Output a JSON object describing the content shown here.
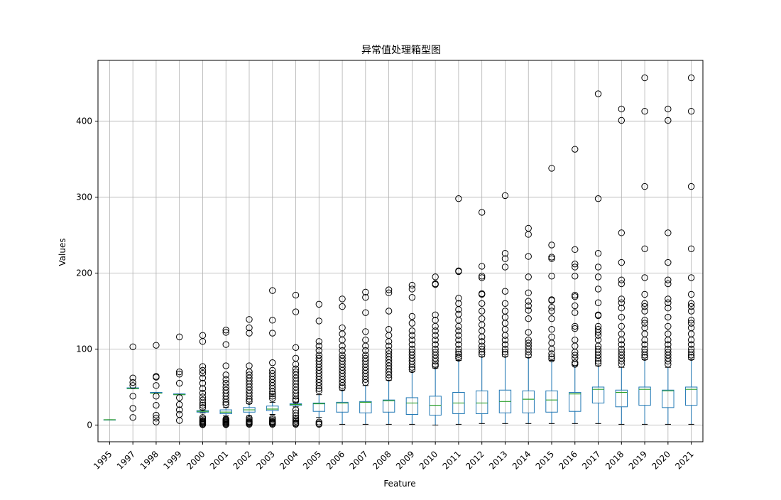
{
  "chart_data": {
    "type": "boxplot",
    "title": "异常值处理箱型图",
    "xlabel": "Feature",
    "ylabel": "Values",
    "ylim": [
      -22,
      480
    ],
    "yticks": [
      0,
      100,
      200,
      300,
      400
    ],
    "grid": true,
    "colors": {
      "box": "#1f77b4",
      "median": "#2ca02c",
      "flier": "#000000",
      "grid": "#b0b0b0"
    },
    "categories": [
      "1995",
      "1997",
      "1998",
      "1999",
      "2000",
      "2001",
      "2002",
      "2003",
      "2004",
      "2005",
      "2006",
      "2007",
      "2008",
      "2009",
      "2010",
      "2011",
      "2012",
      "2013",
      "2014",
      "2015",
      "2016",
      "2017",
      "2018",
      "2019",
      "2020",
      "2021"
    ],
    "boxes": [
      {
        "q1": 7,
        "median": 7,
        "q3": 7,
        "whislo": 7,
        "whishi": 7,
        "fliers": []
      },
      {
        "q1": 48,
        "median": 48,
        "q3": 49,
        "whislo": 48,
        "whishi": 49,
        "fliers": [
          103,
          62,
          56,
          52,
          38,
          22,
          10
        ]
      },
      {
        "q1": 42,
        "median": 42,
        "q3": 43,
        "whislo": 42,
        "whishi": 43,
        "fliers": [
          105,
          64,
          63,
          52,
          38,
          26,
          13,
          9,
          4
        ]
      },
      {
        "q1": 40,
        "median": 40,
        "q3": 41,
        "whislo": 40,
        "whishi": 41,
        "fliers": [
          116,
          70,
          67,
          55,
          36,
          27,
          20,
          14,
          6
        ]
      },
      {
        "q1": 17,
        "median": 18,
        "q3": 19,
        "whislo": 16,
        "whishi": 20,
        "fliers": [
          118,
          110,
          77,
          72,
          68,
          62,
          55,
          48,
          42,
          37,
          33,
          29,
          26,
          23,
          10,
          8,
          6,
          5,
          4,
          3,
          2,
          1,
          0.5
        ]
      },
      {
        "q1": 15,
        "median": 17,
        "q3": 20,
        "whislo": 12,
        "whishi": 23,
        "fliers": [
          125,
          122,
          106,
          78,
          66,
          60,
          55,
          50,
          46,
          42,
          38,
          34,
          30,
          27,
          8,
          7,
          6,
          5,
          4,
          3,
          2,
          1,
          0.5
        ]
      },
      {
        "q1": 17,
        "median": 20,
        "q3": 23,
        "whislo": 12,
        "whishi": 28,
        "fliers": [
          139,
          128,
          121,
          78,
          70,
          66,
          62,
          58,
          54,
          50,
          46,
          42,
          38,
          34,
          31,
          9,
          7,
          5,
          4,
          3,
          2,
          1
        ]
      },
      {
        "q1": 19,
        "median": 21,
        "q3": 25,
        "whislo": 14,
        "whishi": 30,
        "fliers": [
          177,
          138,
          121,
          82,
          72,
          68,
          64,
          60,
          56,
          52,
          48,
          44,
          41,
          38,
          35,
          9,
          7,
          5,
          4,
          3,
          2,
          1
        ]
      },
      {
        "q1": 26,
        "median": 27,
        "q3": 28,
        "whislo": 24,
        "whishi": 30,
        "fliers": [
          171,
          149,
          102,
          88,
          80,
          74,
          70,
          66,
          62,
          58,
          54,
          50,
          46,
          42,
          38,
          34,
          32,
          20,
          16,
          12,
          9,
          7,
          5,
          3,
          2,
          1
        ]
      },
      {
        "q1": 18,
        "median": 28,
        "q3": 29,
        "whislo": 10,
        "whishi": 40,
        "fliers": [
          159,
          137,
          110,
          104,
          98,
          92,
          88,
          84,
          80,
          76,
          72,
          68,
          64,
          60,
          56,
          52,
          48,
          45,
          4,
          2,
          1
        ]
      },
      {
        "q1": 17,
        "median": 29,
        "q3": 30,
        "whislo": 1,
        "whishi": 46,
        "fliers": [
          166,
          156,
          128,
          120,
          112,
          104,
          98,
          92,
          88,
          84,
          80,
          76,
          72,
          68,
          64,
          60,
          56,
          52,
          49
        ]
      },
      {
        "q1": 16,
        "median": 30,
        "q3": 31,
        "whislo": 1,
        "whishi": 52,
        "fliers": [
          175,
          168,
          148,
          123,
          112,
          104,
          98,
          92,
          88,
          84,
          80,
          76,
          72,
          68,
          64,
          60,
          56
        ]
      },
      {
        "q1": 17,
        "median": 32,
        "q3": 33,
        "whislo": 1,
        "whishi": 59,
        "fliers": [
          178,
          174,
          150,
          126,
          118,
          110,
          104,
          98,
          94,
          90,
          86,
          82,
          78,
          74,
          70,
          66,
          62
        ]
      },
      {
        "q1": 14,
        "median": 29,
        "q3": 36,
        "whislo": 1,
        "whishi": 70,
        "fliers": [
          184,
          179,
          168,
          143,
          134,
          124,
          118,
          112,
          106,
          100,
          96,
          92,
          88,
          84,
          80,
          76,
          73
        ]
      },
      {
        "q1": 13,
        "median": 26,
        "q3": 38,
        "whislo": 0,
        "whishi": 75,
        "fliers": [
          195,
          186,
          185,
          145,
          138,
          130,
          124,
          118,
          112,
          106,
          100,
          96,
          92,
          88,
          84,
          80,
          78
        ]
      },
      {
        "q1": 15,
        "median": 29,
        "q3": 43,
        "whislo": 1,
        "whishi": 85,
        "fliers": [
          298,
          203,
          202,
          167,
          160,
          152,
          146,
          138,
          130,
          124,
          118,
          112,
          106,
          100,
          96,
          93,
          90,
          88
        ]
      },
      {
        "q1": 15,
        "median": 29,
        "q3": 45,
        "whislo": 2,
        "whishi": 90,
        "fliers": [
          280,
          209,
          196,
          194,
          173,
          172,
          160,
          150,
          140,
          132,
          124,
          116,
          110,
          104,
          100,
          96,
          93
        ]
      },
      {
        "q1": 16,
        "median": 31,
        "q3": 46,
        "whislo": 2,
        "whishi": 90,
        "fliers": [
          302,
          226,
          219,
          208,
          176,
          160,
          150,
          142,
          134,
          126,
          118,
          112,
          106,
          100,
          96,
          93
        ]
      },
      {
        "q1": 16,
        "median": 34,
        "q3": 45,
        "whislo": 2,
        "whishi": 89,
        "fliers": [
          259,
          251,
          222,
          195,
          174,
          163,
          157,
          151,
          140,
          122,
          112,
          108,
          104,
          100,
          96,
          92
        ]
      },
      {
        "q1": 17,
        "median": 33,
        "q3": 45,
        "whislo": 2,
        "whishi": 85,
        "fliers": [
          338,
          237,
          221,
          219,
          196,
          165,
          164,
          155,
          150,
          140,
          126,
          116,
          108,
          100,
          94,
          90,
          87
        ]
      },
      {
        "q1": 18,
        "median": 41,
        "q3": 43,
        "whislo": 2,
        "whishi": 78,
        "fliers": [
          363,
          231,
          212,
          208,
          196,
          171,
          169,
          157,
          148,
          130,
          127,
          112,
          104,
          96,
          92,
          88,
          82,
          80
        ]
      },
      {
        "q1": 29,
        "median": 47,
        "q3": 50,
        "whislo": 2,
        "whishi": 78,
        "fliers": [
          436,
          298,
          226,
          208,
          195,
          179,
          161,
          145,
          144,
          130,
          126,
          122,
          118,
          112,
          104,
          100,
          96,
          92,
          88,
          84,
          81
        ]
      },
      {
        "q1": 24,
        "median": 43,
        "q3": 46,
        "whislo": 1,
        "whishi": 76,
        "fliers": [
          416,
          401,
          253,
          214,
          191,
          186,
          166,
          161,
          154,
          142,
          130,
          120,
          112,
          106,
          100,
          96,
          92,
          88,
          84,
          80
        ]
      },
      {
        "q1": 26,
        "median": 47,
        "q3": 50,
        "whislo": 1,
        "whishi": 86,
        "fliers": [
          457,
          413,
          314,
          232,
          194,
          172,
          160,
          156,
          150,
          138,
          134,
          128,
          120,
          112,
          106,
          100,
          96,
          92,
          89
        ]
      },
      {
        "q1": 23,
        "median": 45,
        "q3": 46,
        "whislo": 1,
        "whishi": 76,
        "fliers": [
          416,
          401,
          253,
          214,
          191,
          186,
          166,
          161,
          154,
          142,
          130,
          120,
          112,
          106,
          100,
          96,
          92,
          88,
          84,
          80
        ]
      },
      {
        "q1": 26,
        "median": 47,
        "q3": 50,
        "whislo": 1,
        "whishi": 86,
        "fliers": [
          457,
          413,
          314,
          232,
          194,
          172,
          160,
          156,
          150,
          138,
          134,
          128,
          120,
          112,
          106,
          100,
          96,
          92,
          89
        ]
      }
    ]
  }
}
